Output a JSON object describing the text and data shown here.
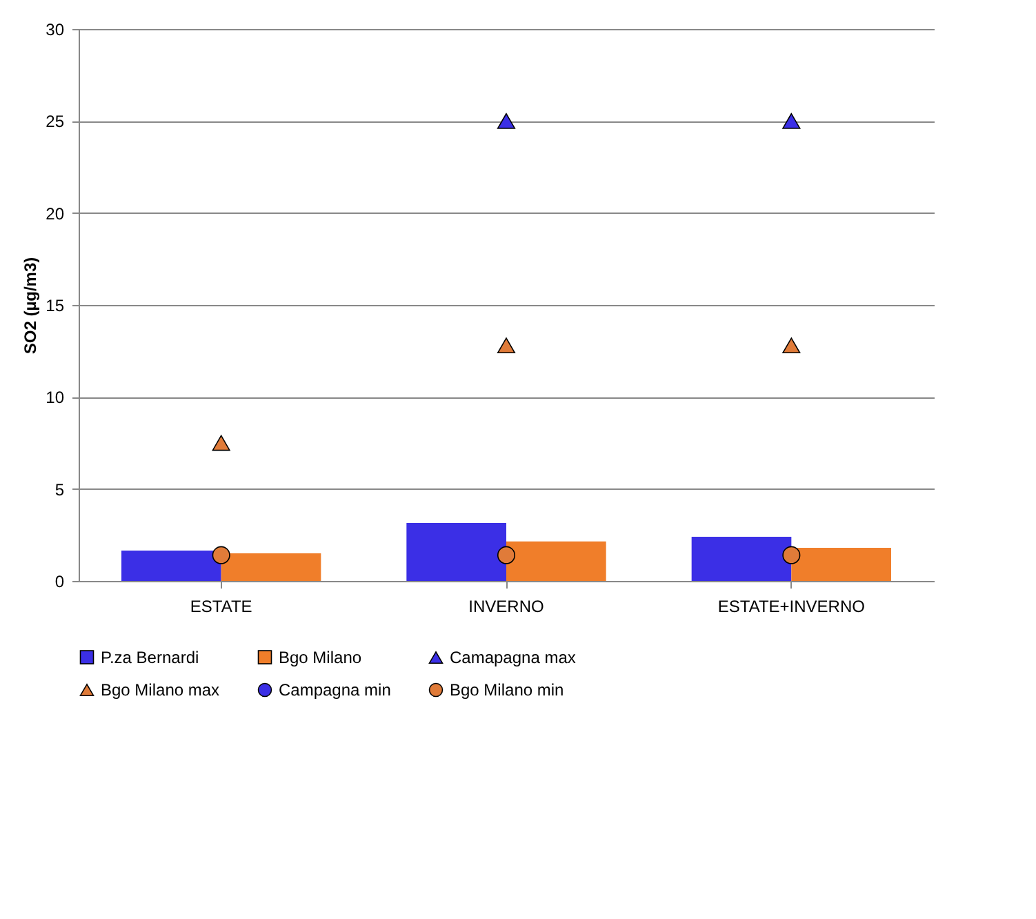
{
  "chart_data": {
    "type": "bar",
    "ylabel": "SO2 (µg/m3)",
    "categories": [
      "ESTATE",
      "INVERNO",
      "ESTATE+INVERNO"
    ],
    "series": [
      {
        "name": "P.za Bernardi",
        "color": "#3b2fe6",
        "values": [
          1.65,
          3.15,
          2.4
        ]
      },
      {
        "name": "Bgo Milano",
        "color": "#f07e2a",
        "values": [
          1.5,
          2.15,
          1.8
        ]
      },
      {
        "name": "Camapagna max",
        "type": "scatter",
        "marker": "triangle",
        "color": "#3b2fe6",
        "values": [
          null,
          25,
          25
        ]
      },
      {
        "name": "Bgo Milano max",
        "type": "scatter",
        "marker": "triangle",
        "color": "#e07b39",
        "values": [
          7.5,
          12.8,
          12.8
        ]
      },
      {
        "name": "Campagna min",
        "type": "scatter",
        "marker": "circle",
        "color": "#3b2fe6",
        "values": [
          null,
          null,
          null
        ]
      },
      {
        "name": "Bgo Milano min",
        "type": "scatter",
        "marker": "circle",
        "color": "#e07b39",
        "values": [
          1.4,
          1.4,
          1.4
        ]
      }
    ],
    "ylim": [
      0,
      30
    ],
    "yticks": [
      0,
      5,
      10,
      15,
      20,
      25,
      30
    ],
    "grid": "y",
    "legend": "bottom"
  }
}
